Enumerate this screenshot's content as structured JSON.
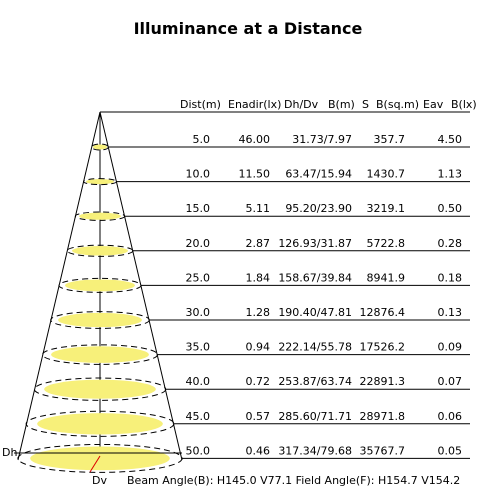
{
  "title": "Illuminance at a Distance",
  "table": {
    "header": [
      "Dist(m)",
      "Enadir(lx)",
      "Dh/Dv",
      "B(m)",
      "S",
      "B(sq.m)",
      "Eav",
      "B(lx)"
    ],
    "rows": [
      [
        "5.0",
        "46.00",
        "31.73/7.97",
        "357.7",
        "4.50"
      ],
      [
        "10.0",
        "11.50",
        "63.47/15.94",
        "1430.7",
        "1.13"
      ],
      [
        "15.0",
        "5.11",
        "95.20/23.90",
        "3219.1",
        "0.50"
      ],
      [
        "20.0",
        "2.87",
        "126.93/31.87",
        "5722.8",
        "0.28"
      ],
      [
        "25.0",
        "1.84",
        "158.67/39.84",
        "8941.9",
        "0.18"
      ],
      [
        "30.0",
        "1.28",
        "190.40/47.81",
        "12876.4",
        "0.13"
      ],
      [
        "35.0",
        "0.94",
        "222.14/55.78",
        "17526.2",
        "0.09"
      ],
      [
        "40.0",
        "0.72",
        "253.87/63.74",
        "22891.3",
        "0.07"
      ],
      [
        "45.0",
        "0.57",
        "285.60/71.71",
        "28971.8",
        "0.06"
      ],
      [
        "50.0",
        "0.46",
        "317.34/79.68",
        "35767.7",
        "0.05"
      ]
    ]
  },
  "labels": {
    "dh": "Dh",
    "dv": "Dv"
  },
  "footer": "Beam Angle(B): H145.0 V77.1  Field Angle(F): H154.7 V154.2"
}
